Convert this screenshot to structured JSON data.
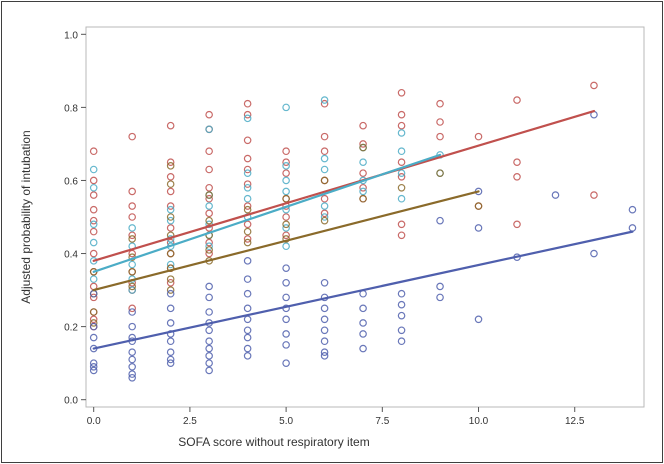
{
  "chart_data": {
    "type": "scatter",
    "title": "",
    "xlabel": "SOFA score without respiratory item",
    "ylabel": "Adjusted probability of intubation",
    "xlim": [
      -0.2,
      14.3
    ],
    "ylim": [
      -0.02,
      1.02
    ],
    "x_ticks": [
      0.0,
      2.5,
      5.0,
      7.5,
      10.0,
      12.5
    ],
    "x_tick_labels": [
      "0.0",
      "2.5",
      "5.0",
      "7.5",
      "10.0",
      "12.5"
    ],
    "y_ticks": [
      0.0,
      0.2,
      0.4,
      0.6,
      0.8,
      1.0
    ],
    "y_tick_labels": [
      "0.0",
      "0.2",
      "0.4",
      "0.6",
      "0.8",
      "1.0"
    ],
    "grid": false,
    "legend": "none",
    "series": [
      {
        "color": "#c0504d",
        "points": [
          [
            0,
            0.68
          ],
          [
            0,
            0.6
          ],
          [
            0,
            0.56
          ],
          [
            0,
            0.52
          ],
          [
            0,
            0.49
          ],
          [
            0,
            0.46
          ],
          [
            0,
            0.4
          ],
          [
            0,
            0.35
          ],
          [
            0,
            0.31
          ],
          [
            0,
            0.28
          ],
          [
            0,
            0.24
          ],
          [
            0,
            0.22
          ],
          [
            0,
            0.2
          ],
          [
            1,
            0.72
          ],
          [
            1,
            0.57
          ],
          [
            1,
            0.53
          ],
          [
            1,
            0.5
          ],
          [
            1,
            0.45
          ],
          [
            1,
            0.4
          ],
          [
            1,
            0.35
          ],
          [
            1,
            0.32
          ],
          [
            1,
            0.3
          ],
          [
            1,
            0.25
          ],
          [
            2,
            0.75
          ],
          [
            2,
            0.65
          ],
          [
            2,
            0.61
          ],
          [
            2,
            0.57
          ],
          [
            2,
            0.53
          ],
          [
            2,
            0.47
          ],
          [
            2,
            0.43
          ],
          [
            2,
            0.4
          ],
          [
            2,
            0.36
          ],
          [
            2,
            0.32
          ],
          [
            3,
            0.78
          ],
          [
            3,
            0.74
          ],
          [
            3,
            0.68
          ],
          [
            3,
            0.63
          ],
          [
            3,
            0.58
          ],
          [
            3,
            0.55
          ],
          [
            3,
            0.51
          ],
          [
            3,
            0.47
          ],
          [
            3,
            0.43
          ],
          [
            3,
            0.4
          ],
          [
            4,
            0.81
          ],
          [
            4,
            0.78
          ],
          [
            4,
            0.71
          ],
          [
            4,
            0.66
          ],
          [
            4,
            0.63
          ],
          [
            4,
            0.59
          ],
          [
            4,
            0.53
          ],
          [
            4,
            0.48
          ],
          [
            4,
            0.44
          ],
          [
            5,
            0.68
          ],
          [
            5,
            0.65
          ],
          [
            5,
            0.62
          ],
          [
            5,
            0.55
          ],
          [
            5,
            0.53
          ],
          [
            5,
            0.5
          ],
          [
            5,
            0.45
          ],
          [
            6,
            0.81
          ],
          [
            6,
            0.72
          ],
          [
            6,
            0.68
          ],
          [
            6,
            0.6
          ],
          [
            6,
            0.55
          ],
          [
            6,
            0.51
          ],
          [
            7,
            0.75
          ],
          [
            7,
            0.7
          ],
          [
            7,
            0.62
          ],
          [
            7,
            0.58
          ],
          [
            7,
            0.55
          ],
          [
            8,
            0.84
          ],
          [
            8,
            0.78
          ],
          [
            8,
            0.75
          ],
          [
            8,
            0.65
          ],
          [
            8,
            0.61
          ],
          [
            8,
            0.48
          ],
          [
            8,
            0.45
          ],
          [
            9,
            0.81
          ],
          [
            9,
            0.76
          ],
          [
            9,
            0.72
          ],
          [
            10,
            0.72
          ],
          [
            10,
            0.53
          ],
          [
            11,
            0.82
          ],
          [
            11,
            0.65
          ],
          [
            11,
            0.61
          ],
          [
            11,
            0.48
          ],
          [
            13,
            0.86
          ],
          [
            13,
            0.56
          ]
        ],
        "fit": {
          "x": [
            0,
            13
          ],
          "y": [
            0.38,
            0.79
          ]
        }
      },
      {
        "color": "#4bacc6",
        "points": [
          [
            0,
            0.63
          ],
          [
            0,
            0.58
          ],
          [
            0,
            0.48
          ],
          [
            0,
            0.43
          ],
          [
            0,
            0.38
          ],
          [
            0,
            0.33
          ],
          [
            1,
            0.47
          ],
          [
            1,
            0.42
          ],
          [
            1,
            0.37
          ],
          [
            1,
            0.33
          ],
          [
            1,
            0.3
          ],
          [
            2,
            0.52
          ],
          [
            2,
            0.49
          ],
          [
            2,
            0.44
          ],
          [
            2,
            0.42
          ],
          [
            2,
            0.37
          ],
          [
            3,
            0.74
          ],
          [
            3,
            0.56
          ],
          [
            3,
            0.53
          ],
          [
            3,
            0.48
          ],
          [
            3,
            0.45
          ],
          [
            3,
            0.42
          ],
          [
            4,
            0.77
          ],
          [
            4,
            0.62
          ],
          [
            4,
            0.58
          ],
          [
            4,
            0.55
          ],
          [
            4,
            0.5
          ],
          [
            5,
            0.8
          ],
          [
            5,
            0.64
          ],
          [
            5,
            0.6
          ],
          [
            5,
            0.57
          ],
          [
            5,
            0.52
          ],
          [
            5,
            0.47
          ],
          [
            5,
            0.42
          ],
          [
            6,
            0.82
          ],
          [
            6,
            0.66
          ],
          [
            6,
            0.63
          ],
          [
            6,
            0.53
          ],
          [
            6,
            0.5
          ],
          [
            7,
            0.69
          ],
          [
            7,
            0.65
          ],
          [
            7,
            0.6
          ],
          [
            7,
            0.57
          ],
          [
            8,
            0.73
          ],
          [
            8,
            0.68
          ],
          [
            8,
            0.62
          ],
          [
            8,
            0.55
          ],
          [
            9,
            0.67
          ],
          [
            9,
            0.62
          ]
        ],
        "fit": {
          "x": [
            0,
            9
          ],
          "y": [
            0.35,
            0.67
          ]
        }
      },
      {
        "color": "#8a6a2a",
        "points": [
          [
            0,
            0.35
          ],
          [
            0,
            0.29
          ],
          [
            0,
            0.24
          ],
          [
            0,
            0.21
          ],
          [
            1,
            0.44
          ],
          [
            1,
            0.39
          ],
          [
            1,
            0.35
          ],
          [
            1,
            0.31
          ],
          [
            2,
            0.64
          ],
          [
            2,
            0.59
          ],
          [
            2,
            0.5
          ],
          [
            2,
            0.45
          ],
          [
            2,
            0.4
          ],
          [
            2,
            0.36
          ],
          [
            2,
            0.33
          ],
          [
            2,
            0.3
          ],
          [
            3,
            0.56
          ],
          [
            3,
            0.49
          ],
          [
            3,
            0.45
          ],
          [
            3,
            0.41
          ],
          [
            3,
            0.38
          ],
          [
            4,
            0.52
          ],
          [
            4,
            0.46
          ],
          [
            4,
            0.43
          ],
          [
            5,
            0.55
          ],
          [
            5,
            0.48
          ],
          [
            5,
            0.44
          ],
          [
            6,
            0.6
          ],
          [
            6,
            0.49
          ],
          [
            7,
            0.69
          ],
          [
            7,
            0.55
          ],
          [
            8,
            0.58
          ],
          [
            9,
            0.62
          ],
          [
            10,
            0.53
          ]
        ],
        "fit": {
          "x": [
            0,
            10
          ],
          "y": [
            0.3,
            0.57
          ]
        }
      },
      {
        "color": "#4f5fad",
        "points": [
          [
            0,
            0.29
          ],
          [
            0,
            0.2
          ],
          [
            0,
            0.17
          ],
          [
            0,
            0.14
          ],
          [
            0,
            0.1
          ],
          [
            0,
            0.09
          ],
          [
            0,
            0.08
          ],
          [
            1,
            0.24
          ],
          [
            1,
            0.2
          ],
          [
            1,
            0.17
          ],
          [
            1,
            0.16
          ],
          [
            1,
            0.13
          ],
          [
            1,
            0.11
          ],
          [
            1,
            0.09
          ],
          [
            1,
            0.07
          ],
          [
            1,
            0.06
          ],
          [
            2,
            0.29
          ],
          [
            2,
            0.25
          ],
          [
            2,
            0.21
          ],
          [
            2,
            0.18
          ],
          [
            2,
            0.16
          ],
          [
            2,
            0.13
          ],
          [
            2,
            0.11
          ],
          [
            2,
            0.1
          ],
          [
            3,
            0.31
          ],
          [
            3,
            0.28
          ],
          [
            3,
            0.24
          ],
          [
            3,
            0.21
          ],
          [
            3,
            0.19
          ],
          [
            3,
            0.16
          ],
          [
            3,
            0.14
          ],
          [
            3,
            0.12
          ],
          [
            3,
            0.1
          ],
          [
            3,
            0.08
          ],
          [
            4,
            0.38
          ],
          [
            4,
            0.33
          ],
          [
            4,
            0.29
          ],
          [
            4,
            0.25
          ],
          [
            4,
            0.22
          ],
          [
            4,
            0.19
          ],
          [
            4,
            0.17
          ],
          [
            4,
            0.14
          ],
          [
            4,
            0.12
          ],
          [
            5,
            0.36
          ],
          [
            5,
            0.32
          ],
          [
            5,
            0.28
          ],
          [
            5,
            0.25
          ],
          [
            5,
            0.22
          ],
          [
            5,
            0.18
          ],
          [
            5,
            0.15
          ],
          [
            5,
            0.1
          ],
          [
            6,
            0.32
          ],
          [
            6,
            0.28
          ],
          [
            6,
            0.25
          ],
          [
            6,
            0.22
          ],
          [
            6,
            0.19
          ],
          [
            6,
            0.16
          ],
          [
            6,
            0.13
          ],
          [
            6,
            0.12
          ],
          [
            7,
            0.29
          ],
          [
            7,
            0.25
          ],
          [
            7,
            0.21
          ],
          [
            7,
            0.18
          ],
          [
            7,
            0.14
          ],
          [
            8,
            0.29
          ],
          [
            8,
            0.26
          ],
          [
            8,
            0.23
          ],
          [
            8,
            0.19
          ],
          [
            8,
            0.16
          ],
          [
            9,
            0.49
          ],
          [
            9,
            0.31
          ],
          [
            9,
            0.28
          ],
          [
            10,
            0.57
          ],
          [
            10,
            0.47
          ],
          [
            10,
            0.22
          ],
          [
            11,
            0.39
          ],
          [
            12,
            0.56
          ],
          [
            13,
            0.78
          ],
          [
            13,
            0.4
          ],
          [
            14,
            0.52
          ],
          [
            14,
            0.47
          ]
        ],
        "fit": {
          "x": [
            0,
            14
          ],
          "y": [
            0.14,
            0.46
          ]
        }
      }
    ]
  }
}
